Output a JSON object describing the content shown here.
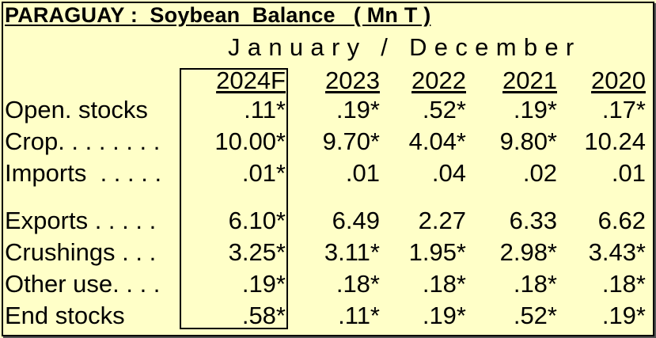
{
  "title": "PARAGUAY :  Soybean  Balance   ( Mn T )",
  "subtitle": "January / December",
  "chart_data": {
    "type": "table",
    "title": "PARAGUAY :  Soybean  Balance   ( Mn T )",
    "subtitle": "January / December",
    "columns": [
      "2024F",
      "2023",
      "2022",
      "2021",
      "2020"
    ],
    "highlighted_column": "2024F",
    "rows": [
      {
        "label": "Open. stocks",
        "values": [
          ".11*",
          ".19*",
          ".52*",
          ".19*",
          ".17*"
        ]
      },
      {
        "label": "Crop. . . . . . . .",
        "values": [
          "10.00*",
          "9.70*",
          "4.04*",
          "9.80*",
          "10.24"
        ]
      },
      {
        "label": "Imports  . . . . .",
        "values": [
          ".01*",
          ".01",
          ".04",
          ".02",
          ".01"
        ]
      },
      {
        "label": "Exports . . . . .",
        "values": [
          "6.10*",
          "6.49",
          "2.27",
          "6.33",
          "6.62"
        ]
      },
      {
        "label": "Crushings . . .",
        "values": [
          "3.25*",
          "3.11*",
          "1.95*",
          "2.98*",
          "3.43*"
        ]
      },
      {
        "label": "Other use. . . .",
        "values": [
          ".19*",
          ".18*",
          ".18*",
          ".18*",
          ".18*"
        ]
      },
      {
        "label": "End stocks",
        "values": [
          ".58*",
          ".11*",
          ".19*",
          ".52*",
          ".19*"
        ]
      }
    ]
  }
}
